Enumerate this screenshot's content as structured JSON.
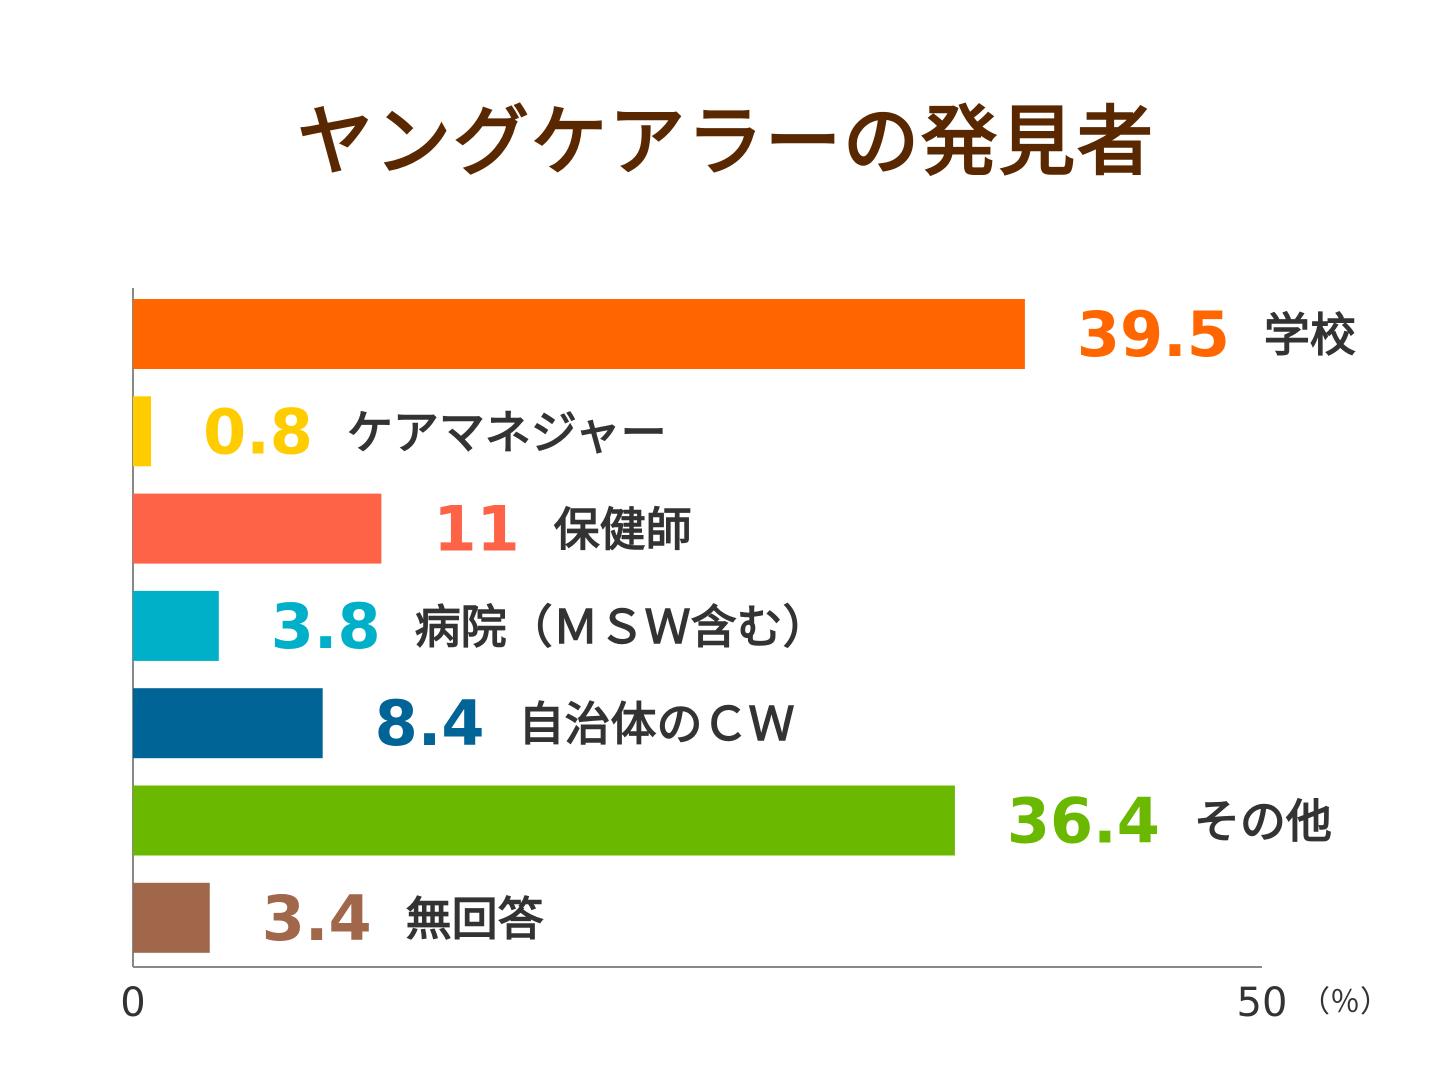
{
  "chart_data": {
    "type": "bar",
    "orientation": "horizontal",
    "title": "ヤングケアラーの発見者",
    "categories": [
      "学校",
      "ケアマネジャー",
      "保健師",
      "病院（ＭＳＷ含む）",
      "自治体のＣＷ",
      "その他",
      "無回答"
    ],
    "values": [
      39.5,
      0.8,
      11,
      3.8,
      8.4,
      36.4,
      3.4
    ],
    "value_labels": [
      "39.5",
      "0.8",
      "11",
      "3.8",
      "8.4",
      "36.4",
      "3.4"
    ],
    "colors": [
      "#ff6600",
      "#ffcc00",
      "#ff6347",
      "#00b0c8",
      "#006496",
      "#6ab800",
      "#a0674a"
    ],
    "xlim": [
      0,
      50
    ],
    "x_ticks": [
      "0",
      "50"
    ],
    "x_unit": "（％）",
    "grid": false,
    "legend": "none",
    "title_color": "#5a2800"
  }
}
